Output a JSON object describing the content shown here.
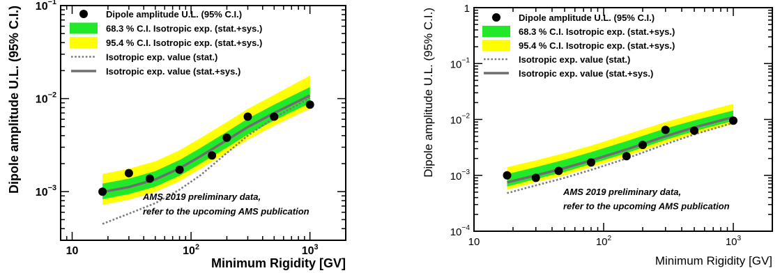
{
  "colors": {
    "band68": "#22e82a",
    "band95": "#ffff00",
    "line": "#6e6e6e",
    "dotted": "#7a7a7a",
    "points": "#000000",
    "frame": "#000000",
    "background": "#ffffff"
  },
  "chart_data": [
    {
      "type": "scatter",
      "x_scale": "log",
      "y_scale": "log",
      "xlim": [
        8,
        2000
      ],
      "ylim": [
        0.0003,
        0.1
      ],
      "xlabel": "Minimum Rigidity [GV]",
      "ylabel": "Dipole amplitude U.L. (95% C.I.)",
      "x_ticks": [
        {
          "value": 10,
          "label": "10",
          "exp": ""
        },
        {
          "value": 100,
          "label": "10",
          "exp": "2"
        },
        {
          "value": 1000,
          "label": "10",
          "exp": "3"
        }
      ],
      "y_ticks": [
        {
          "value": 0.001,
          "label": "10",
          "exp": "−3"
        },
        {
          "value": 0.01,
          "label": "10",
          "exp": "−2"
        },
        {
          "value": 0.1,
          "label": "10",
          "exp": "−1"
        }
      ],
      "legend": {
        "position": "top-left",
        "entries": [
          {
            "kind": "point",
            "label": "Dipole amplitude U.L. (95% C.I.)"
          },
          {
            "kind": "band68",
            "label": "68.3 % C.I. Isotropic exp. (stat.+sys.)"
          },
          {
            "kind": "band95",
            "label": "95.4 % C.I. Isotropic exp. (stat.+sys.)"
          },
          {
            "kind": "dotted",
            "label": "Isotropic exp. value (stat.)"
          },
          {
            "kind": "solid",
            "label": "Isotropic exp. value (stat.+sys.)"
          }
        ]
      },
      "annotation": [
        "AMS 2019 preliminary data,",
        "refer to the upcoming AMS publication"
      ],
      "series": [
        {
          "name": "Dipole amplitude U.L. (95% C.I.)",
          "kind": "points",
          "x": [
            18,
            30,
            45,
            80,
            150,
            200,
            300,
            500,
            1000
          ],
          "y": [
            0.001,
            0.00158,
            0.00138,
            0.00172,
            0.00245,
            0.0038,
            0.0064,
            0.0064,
            0.0086
          ]
        },
        {
          "name": "95.4 % C.I. Isotropic exp. (stat.+sys.)",
          "kind": "band95",
          "x": [
            18,
            30,
            50,
            80,
            120,
            200,
            300,
            500,
            1000
          ],
          "low": [
            0.00072,
            0.00082,
            0.00099,
            0.0013,
            0.00176,
            0.00261,
            0.00361,
            0.00511,
            0.0078
          ],
          "high": [
            0.00155,
            0.00176,
            0.00212,
            0.00278,
            0.00376,
            0.0056,
            0.00775,
            0.01095,
            0.0177
          ]
        },
        {
          "name": "68.3 % C.I. Isotropic exp. (stat.+sys.)",
          "kind": "band68",
          "x": [
            18,
            30,
            50,
            80,
            120,
            200,
            300,
            500,
            1000
          ],
          "low": [
            0.00083,
            0.00094,
            0.00113,
            0.00148,
            0.002,
            0.00297,
            0.00412,
            0.00582,
            0.0089
          ],
          "high": [
            0.00122,
            0.00138,
            0.00166,
            0.00219,
            0.00295,
            0.0044,
            0.0061,
            0.00862,
            0.0133
          ]
        },
        {
          "name": "Isotropic exp. value (stat.+sys.)",
          "kind": "solid",
          "x": [
            18,
            30,
            50,
            80,
            120,
            200,
            300,
            500,
            1000
          ],
          "y": [
            0.00099,
            0.00112,
            0.00135,
            0.00178,
            0.0024,
            0.00357,
            0.00495,
            0.007,
            0.0108
          ]
        },
        {
          "name": "Isotropic exp. value (stat.)",
          "kind": "dotted",
          "x": [
            18,
            30,
            50,
            80,
            120,
            200,
            300,
            500,
            1000
          ],
          "y": [
            0.00045,
            0.00058,
            0.00075,
            0.00105,
            0.0015,
            0.0026,
            0.004,
            0.0062,
            0.0102
          ]
        }
      ]
    },
    {
      "type": "scatter",
      "x_scale": "log",
      "y_scale": "log",
      "xlim": [
        10,
        2000
      ],
      "ylim": [
        0.0001,
        1
      ],
      "xlabel": "Minimum Rigidity [GV]",
      "ylabel": "Dipole amplitude U.L. (95% C.I.)",
      "x_ticks": [
        {
          "value": 10,
          "label": "10",
          "exp": ""
        },
        {
          "value": 100,
          "label": "10",
          "exp": "2"
        },
        {
          "value": 1000,
          "label": "10",
          "exp": "3"
        }
      ],
      "y_ticks": [
        {
          "value": 0.0001,
          "label": "10",
          "exp": "−4"
        },
        {
          "value": 0.001,
          "label": "10",
          "exp": "−3"
        },
        {
          "value": 0.01,
          "label": "10",
          "exp": "−2"
        },
        {
          "value": 0.1,
          "label": "10",
          "exp": "−1"
        },
        {
          "value": 1,
          "label": "1",
          "exp": ""
        }
      ],
      "legend": {
        "position": "top-left",
        "entries": [
          {
            "kind": "point",
            "label": "Dipole amplitude U.L. (95% C.I.)"
          },
          {
            "kind": "band68",
            "label": "68.3 % C.I. Isotropic exp. (stat.+sys.)"
          },
          {
            "kind": "band95",
            "label": "95.4 % C.I. Isotropic exp. (stat.+sys.)"
          },
          {
            "kind": "dotted",
            "label": "Isotropic exp. value (stat.)"
          },
          {
            "kind": "solid",
            "label": "Isotropic exp. value (stat.+sys.)"
          }
        ]
      },
      "annotation": [
        "AMS 2019 preliminary data,",
        "refer to the upcoming AMS publication"
      ],
      "series": [
        {
          "name": "Dipole amplitude U.L. (95% C.I.)",
          "kind": "points",
          "x": [
            18,
            30,
            45,
            80,
            150,
            200,
            300,
            500,
            1000
          ],
          "y": [
            0.001,
            0.0009,
            0.0012,
            0.0017,
            0.0022,
            0.0035,
            0.0065,
            0.0063,
            0.0095
          ]
        },
        {
          "name": "95.4 % C.I. Isotropic exp. (stat.+sys.)",
          "kind": "band95",
          "x": [
            18,
            30,
            50,
            80,
            150,
            300,
            500,
            1000
          ],
          "low": [
            0.00055,
            0.00075,
            0.001,
            0.0014,
            0.0022,
            0.0038,
            0.0055,
            0.0083
          ],
          "high": [
            0.0014,
            0.00185,
            0.0025,
            0.0034,
            0.0054,
            0.009,
            0.0125,
            0.019
          ]
        },
        {
          "name": "68.3 % C.I. Isotropic exp. (stat.+sys.)",
          "kind": "band68",
          "x": [
            18,
            30,
            50,
            80,
            150,
            300,
            500,
            1000
          ],
          "low": [
            0.00063,
            0.00086,
            0.00115,
            0.0016,
            0.0025,
            0.0043,
            0.0062,
            0.0094
          ],
          "high": [
            0.00105,
            0.0014,
            0.0019,
            0.0026,
            0.0041,
            0.0069,
            0.0096,
            0.0145
          ]
        },
        {
          "name": "Isotropic exp. value (stat.+sys.)",
          "kind": "solid",
          "x": [
            18,
            30,
            50,
            80,
            150,
            300,
            500,
            1000
          ],
          "y": [
            0.00075,
            0.001,
            0.00135,
            0.00185,
            0.0029,
            0.005,
            0.0072,
            0.011
          ]
        },
        {
          "name": "Isotropic exp. value (stat.)",
          "kind": "dotted",
          "x": [
            18,
            30,
            50,
            80,
            150,
            300,
            500,
            1000
          ],
          "y": [
            0.00048,
            0.00066,
            0.0009,
            0.00125,
            0.002,
            0.0036,
            0.0054,
            0.0087
          ]
        }
      ]
    }
  ]
}
